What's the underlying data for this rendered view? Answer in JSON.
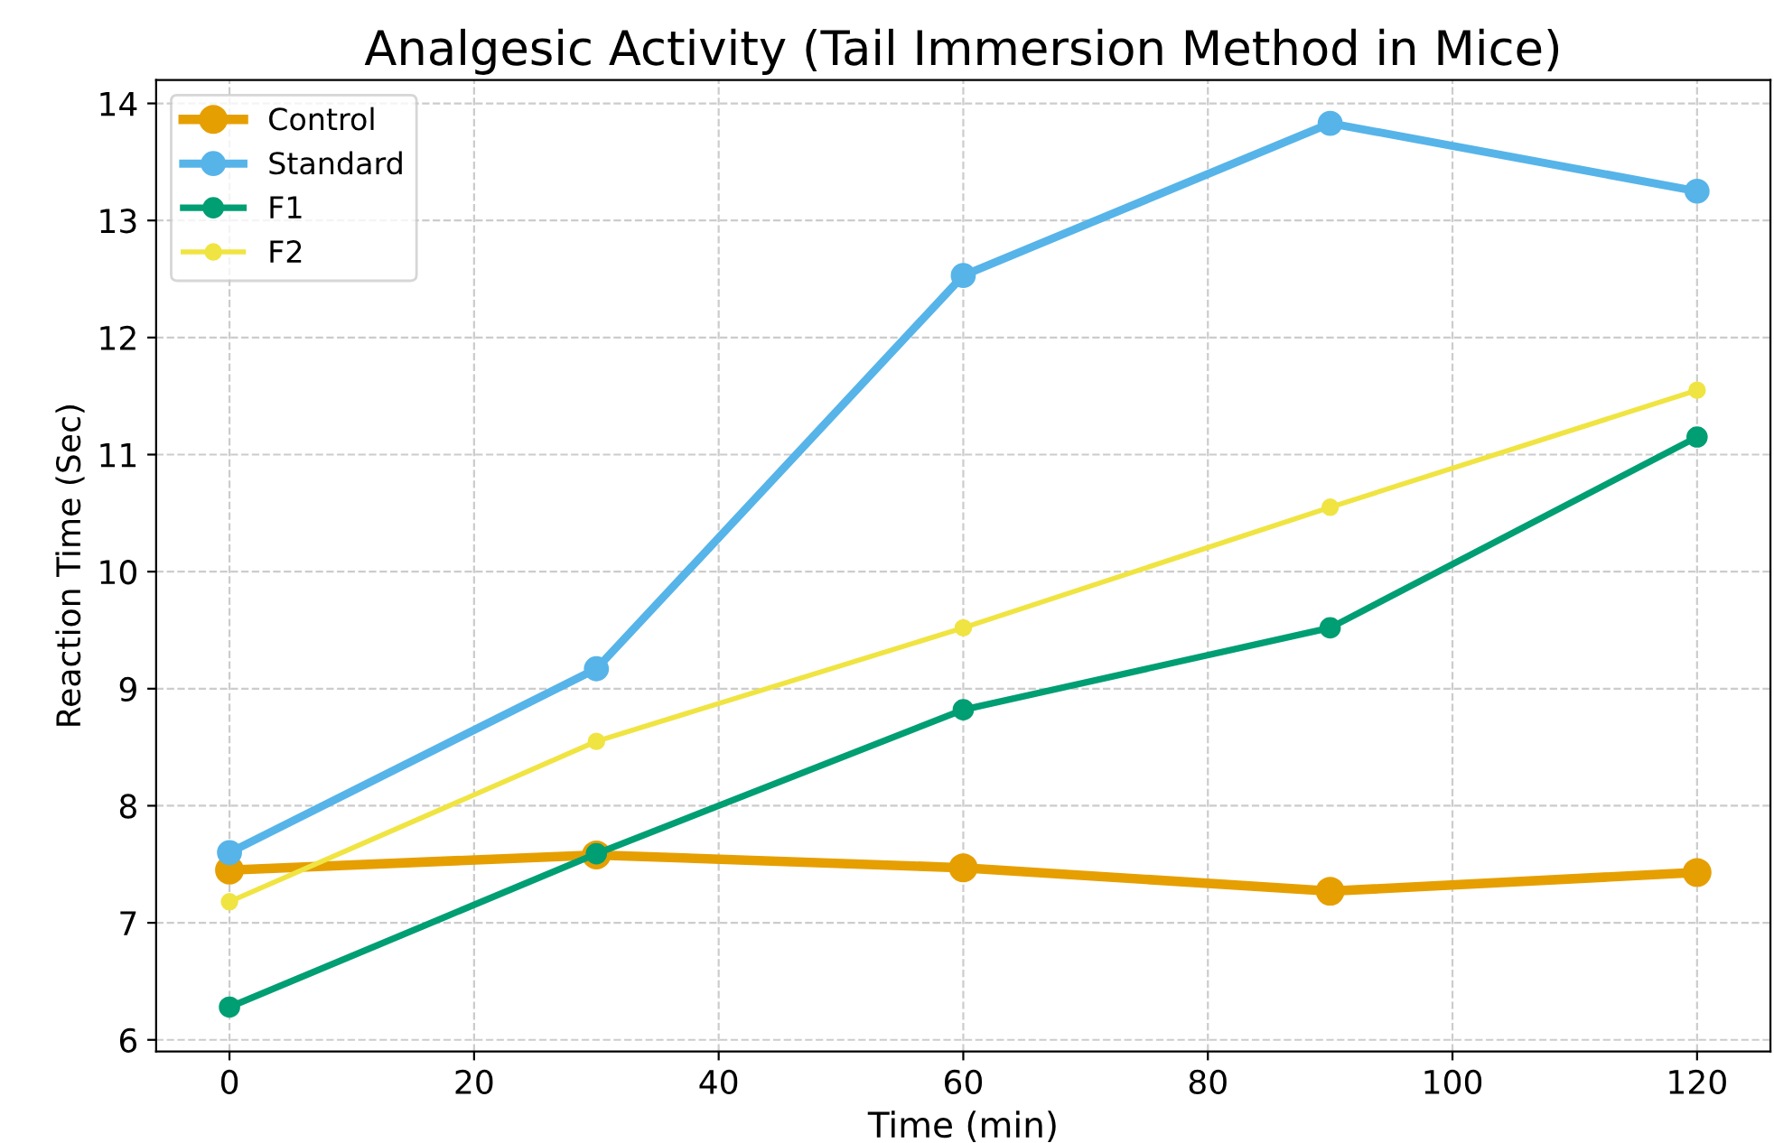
{
  "chart_data": {
    "type": "line",
    "title": "Analgesic Activity (Tail Immersion Method in Mice)",
    "xlabel": "Time (min)",
    "ylabel": "Reaction Time (Sec)",
    "x": [
      0,
      30,
      60,
      90,
      120
    ],
    "series": [
      {
        "name": "Control",
        "color": "#e69f00",
        "values": [
          7.45,
          7.58,
          7.47,
          7.27,
          7.43
        ]
      },
      {
        "name": "Standard",
        "color": "#56b4e9",
        "values": [
          7.6,
          9.17,
          12.53,
          13.83,
          13.25
        ]
      },
      {
        "name": "F1",
        "color": "#009e73",
        "values": [
          6.28,
          7.59,
          8.82,
          9.52,
          11.15
        ]
      },
      {
        "name": "F2",
        "color": "#f0e442",
        "values": [
          7.18,
          8.55,
          9.52,
          10.55,
          11.55
        ]
      }
    ],
    "xlim": [
      -6,
      126
    ],
    "ylim": [
      5.9,
      14.2
    ],
    "xticks": [
      0,
      20,
      40,
      60,
      80,
      100,
      120
    ],
    "yticks": [
      6,
      7,
      8,
      9,
      10,
      11,
      12,
      13,
      14
    ],
    "grid": true,
    "legend": "top left",
    "marker": "circle",
    "line_style": "solid"
  }
}
